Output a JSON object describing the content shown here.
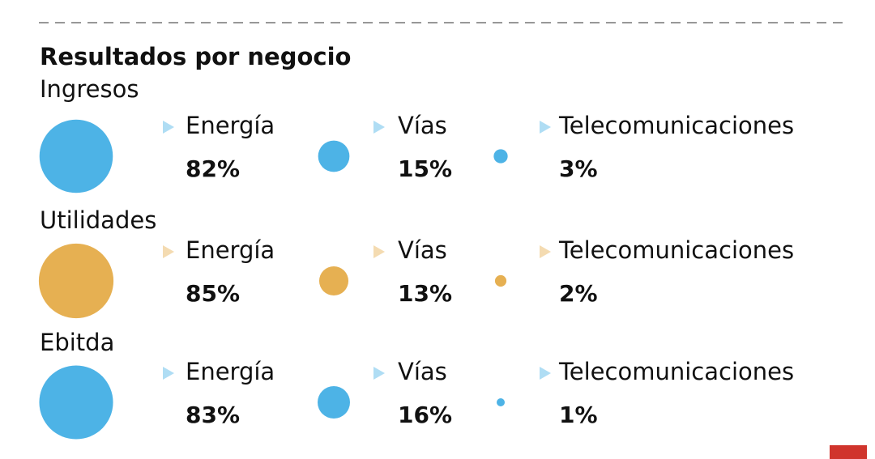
{
  "chart_data": {
    "type": "bubble",
    "title": "Resultados por negocio",
    "categories": [
      "Energía",
      "Vías",
      "Telecomunicaciones"
    ],
    "groups": [
      {
        "name": "Ingresos",
        "color": "#4db3e6",
        "values": [
          82,
          15,
          3
        ],
        "value_labels": [
          "82%",
          "15%",
          "3%"
        ]
      },
      {
        "name": "Utilidades",
        "color": "#e6b052",
        "values": [
          85,
          13,
          2
        ],
        "value_labels": [
          "85%",
          "13%",
          "2%"
        ]
      },
      {
        "name": "Ebitda",
        "color": "#4db3e6",
        "values": [
          83,
          16,
          1
        ],
        "value_labels": [
          "83%",
          "16%",
          "1%"
        ]
      }
    ]
  }
}
